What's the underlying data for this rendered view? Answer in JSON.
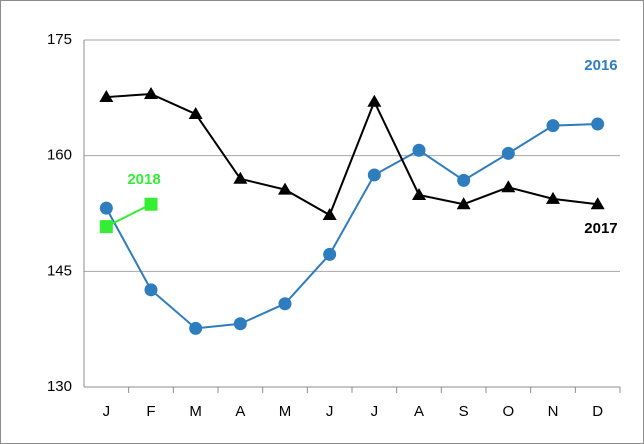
{
  "chart_data": {
    "type": "line",
    "categories": [
      "J",
      "F",
      "M",
      "A",
      "M",
      "J",
      "J",
      "A",
      "S",
      "O",
      "N",
      "D"
    ],
    "series": [
      {
        "name": "2016",
        "color": "#2e7dbf",
        "marker": "circle",
        "values": [
          153.2,
          142.6,
          137.6,
          138.2,
          140.8,
          147.2,
          157.5,
          160.7,
          156.8,
          160.3,
          163.9,
          164.1
        ]
      },
      {
        "name": "2017",
        "color": "#000000",
        "marker": "triangle",
        "values": [
          167.6,
          168.0,
          165.4,
          157.0,
          155.6,
          152.3,
          167.0,
          154.9,
          153.7,
          155.9,
          154.4,
          153.7
        ]
      },
      {
        "name": "2018",
        "color": "#33ee33",
        "marker": "square",
        "values": [
          150.8,
          153.7,
          null,
          null,
          null,
          null,
          null,
          null,
          null,
          null,
          null,
          null
        ]
      }
    ],
    "ylim": [
      130,
      175
    ],
    "yticks": [
      130,
      145,
      160,
      175
    ],
    "grid": true
  }
}
